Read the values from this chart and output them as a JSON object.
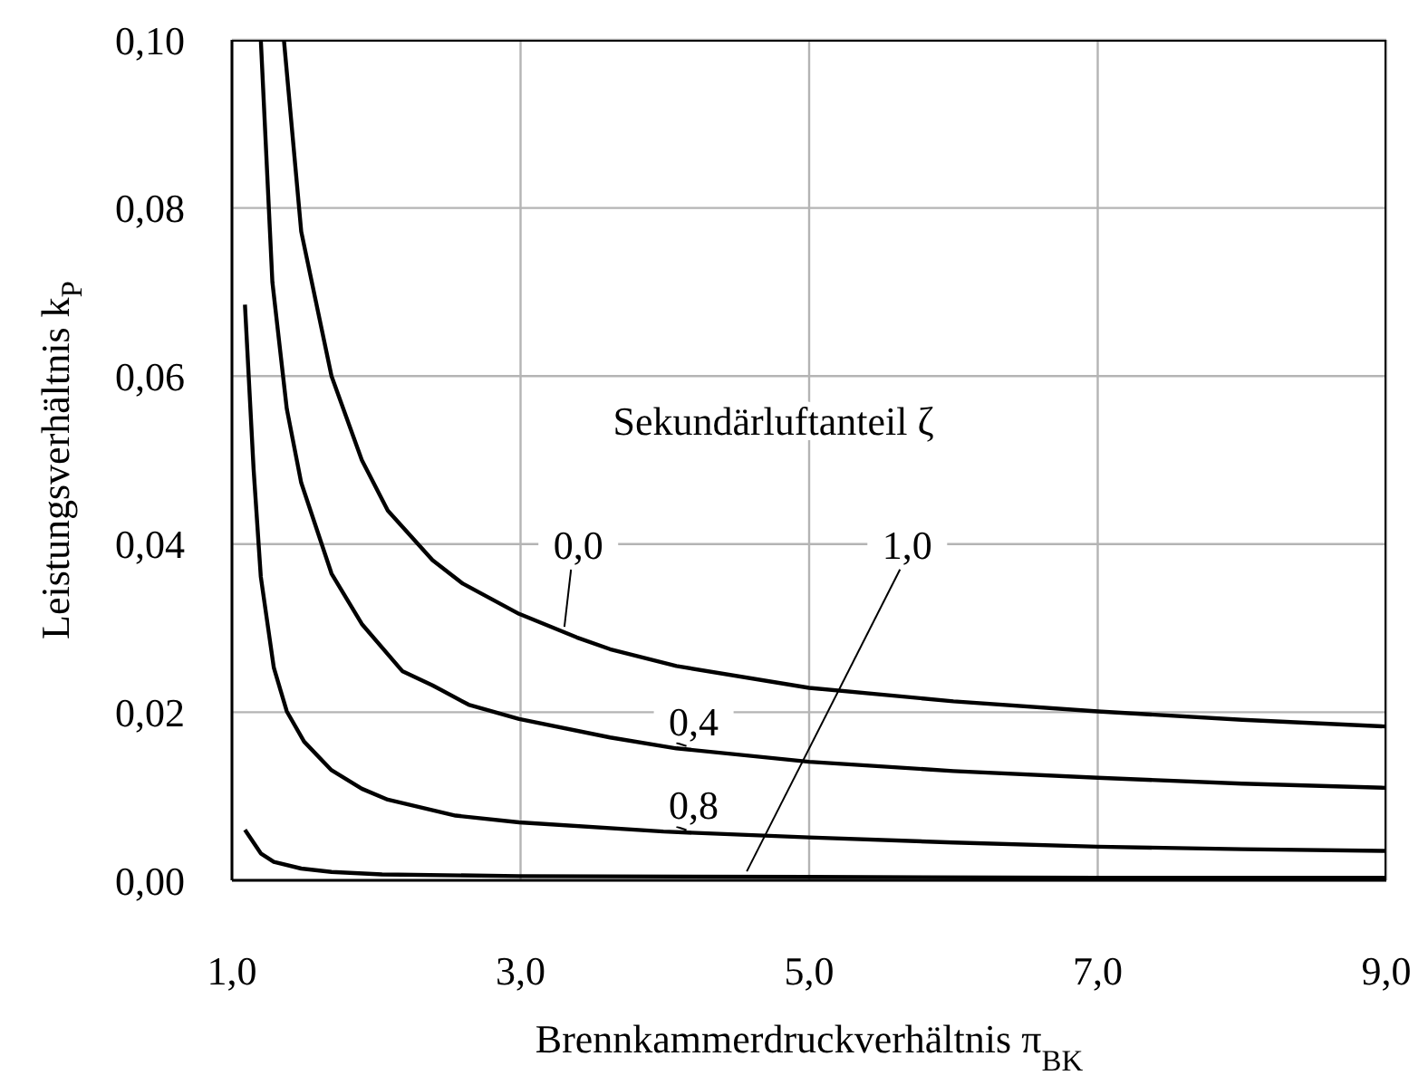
{
  "chart_data": {
    "type": "line",
    "xlabel": "Brennkammerdruckverhältnis π$_{BK}$",
    "ylabel": "Leistungsverhältnis k$_{P}$",
    "legend_title": "Sekundärluftanteil ζ",
    "xlim": [
      1,
      9
    ],
    "ylim": [
      0,
      0.1
    ],
    "xticks": [
      {
        "value": 1,
        "label": "1,0"
      },
      {
        "value": 3,
        "label": "3,0"
      },
      {
        "value": 5,
        "label": "5,0"
      },
      {
        "value": 7,
        "label": "7,0"
      },
      {
        "value": 9,
        "label": "9,0"
      }
    ],
    "yticks": [
      {
        "value": 0,
        "label": "0,00"
      },
      {
        "value": 0.02,
        "label": "0,02"
      },
      {
        "value": 0.04,
        "label": "0,04"
      },
      {
        "value": 0.06,
        "label": "0,06"
      },
      {
        "value": 0.08,
        "label": "0,08"
      },
      {
        "value": 0.1,
        "label": "0,10"
      }
    ],
    "grid": true,
    "marker": "none",
    "line_style": "solid",
    "series": [
      {
        "name": "0,0",
        "color": "#000000",
        "x": [
          1.36,
          1.48,
          1.69,
          1.9,
          2.08,
          2.39,
          2.6,
          2.99,
          3.39,
          3.62,
          4.08,
          5.0,
          6.0,
          7.0,
          8.0,
          9.0
        ],
        "values": [
          0.1,
          0.0772,
          0.06,
          0.05,
          0.044,
          0.0381,
          0.0353,
          0.0317,
          0.0289,
          0.0275,
          0.0255,
          0.0229,
          0.0213,
          0.0201,
          0.0191,
          0.0183
        ]
      },
      {
        "name": "0,4",
        "color": "#000000",
        "x": [
          1.2,
          1.28,
          1.38,
          1.48,
          1.69,
          1.9,
          2.18,
          2.39,
          2.64,
          2.99,
          3.62,
          4.08,
          5.0,
          6.0,
          7.0,
          8.0,
          9.0
        ],
        "values": [
          0.1,
          0.0712,
          0.0561,
          0.0473,
          0.0365,
          0.0305,
          0.0249,
          0.0232,
          0.0209,
          0.0192,
          0.017,
          0.0157,
          0.0141,
          0.013,
          0.0122,
          0.0115,
          0.011
        ]
      },
      {
        "name": "0,8",
        "color": "#000000",
        "x": [
          1.09,
          1.15,
          1.2,
          1.29,
          1.38,
          1.5,
          1.69,
          1.9,
          2.08,
          2.55,
          2.99,
          3.99,
          5.0,
          6.0,
          7.0,
          8.0,
          9.0
        ],
        "values": [
          0.0685,
          0.0489,
          0.0361,
          0.0253,
          0.0201,
          0.0165,
          0.0131,
          0.0109,
          0.0096,
          0.0077,
          0.0069,
          0.0058,
          0.0051,
          0.0045,
          0.004,
          0.0037,
          0.0035
        ]
      },
      {
        "name": "1,0",
        "color": "#000000",
        "x": [
          1.09,
          1.2,
          1.29,
          1.48,
          1.69,
          2.04,
          2.99,
          5.0,
          7.0,
          9.0
        ],
        "values": [
          0.006,
          0.0032,
          0.0022,
          0.0014,
          0.001,
          0.0007,
          0.0005,
          0.0004,
          0.0003,
          0.0003
        ]
      }
    ]
  }
}
